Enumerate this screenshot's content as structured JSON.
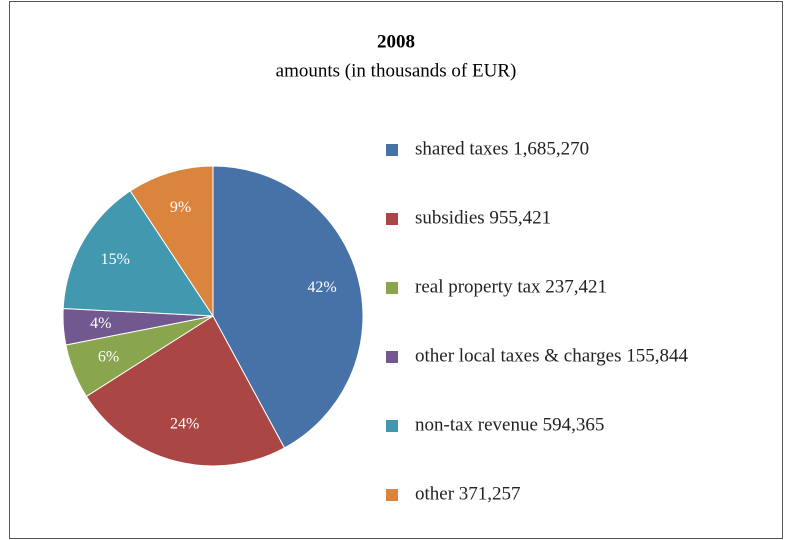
{
  "chart_data": {
    "type": "pie",
    "title": "2008",
    "subtitle": "amounts (in thousands of EUR)",
    "categories": [
      "shared taxes 1,685,270",
      "subsidies 955,421",
      "real property tax 237,421",
      "other local taxes & charges 155,844",
      "non-tax revenue 594,365",
      "other 371,257"
    ],
    "values": [
      42.1,
      23.9,
      5.9,
      3.9,
      14.9,
      9.3
    ],
    "value_labels": [
      "42%",
      "24%",
      "6%",
      "4%",
      "15%",
      "9%"
    ],
    "colors": [
      "#4672a8",
      "#aa4644",
      "#89a54e",
      "#71588f",
      "#4198af",
      "#db843d"
    ],
    "legend": "right"
  }
}
